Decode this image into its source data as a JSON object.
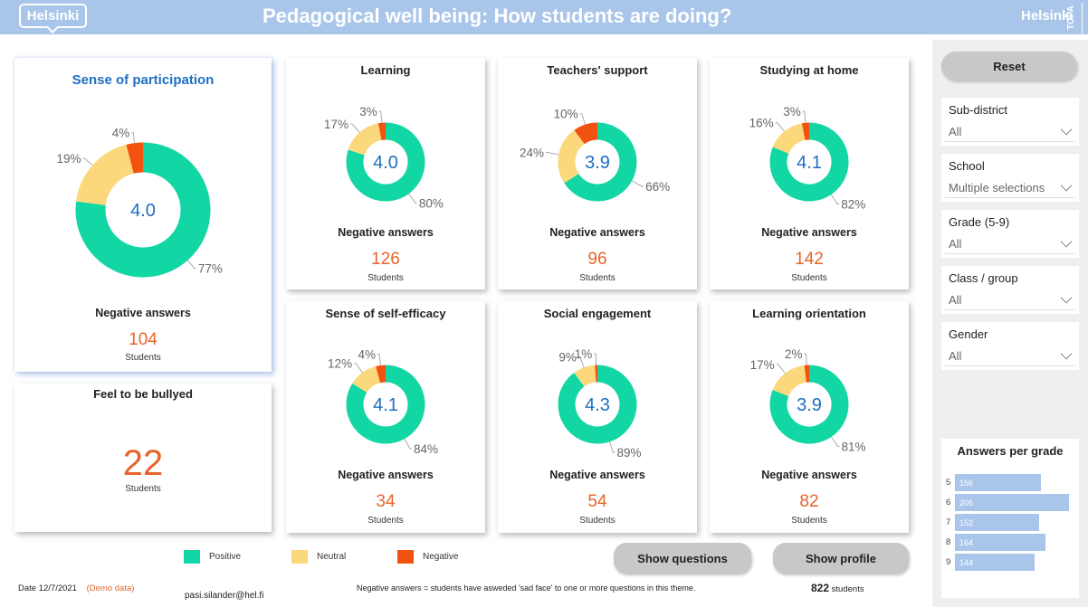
{
  "header": {
    "logo": "Helsinki",
    "title": "Pedagogical well being: How students are doing?",
    "brand": "Helsinki",
    "side_tag": "TOPA"
  },
  "colors": {
    "positive": "#13d6a5",
    "neutral": "#fcd87d",
    "negative": "#f2520f",
    "accent": "#1f6fc2",
    "count": "#e8632a"
  },
  "cards": {
    "participation": {
      "title": "Sense of participation",
      "score": "4.0",
      "pos": 77,
      "neu": 19,
      "neg": 4,
      "pos_label": "77%",
      "neu_label": "19%",
      "neg_label": "4%",
      "negative_label": "Negative answers",
      "count": "104",
      "unit": "Students"
    },
    "learning": {
      "title": "Learning",
      "score": "4.0",
      "pos": 80,
      "neu": 17,
      "neg": 3,
      "pos_label": "80%",
      "neu_label": "17%",
      "neg_label": "3%",
      "negative_label": "Negative answers",
      "count": "126",
      "unit": "Students"
    },
    "teachers": {
      "title": "Teachers' support",
      "score": "3.9",
      "pos": 66,
      "neu": 24,
      "neg": 10,
      "pos_label": "66%",
      "neu_label": "24%",
      "neg_label": "10%",
      "negative_label": "Negative answers",
      "count": "96",
      "unit": "Students"
    },
    "home": {
      "title": "Studying at home",
      "score": "4.1",
      "pos": 82,
      "neu": 16,
      "neg": 3,
      "pos_label": "82%",
      "neu_label": "16%",
      "neg_label": "3%",
      "negative_label": "Negative answers",
      "count": "142",
      "unit": "Students"
    },
    "efficacy": {
      "title": "Sense of self-efficacy",
      "score": "4.1",
      "pos": 84,
      "neu": 12,
      "neg": 4,
      "pos_label": "84%",
      "neu_label": "12%",
      "neg_label": "4%",
      "negative_label": "Negative answers",
      "count": "34",
      "unit": "Students"
    },
    "social": {
      "title": "Social engagement",
      "score": "4.3",
      "pos": 89,
      "neu": 9,
      "neg": 1,
      "pos_label": "89%",
      "neu_label": "9%",
      "neg_label": "1%",
      "negative_label": "Negative answers",
      "count": "54",
      "unit": "Students"
    },
    "orientation": {
      "title": "Learning orientation",
      "score": "3.9",
      "pos": 81,
      "neu": 17,
      "neg": 2,
      "pos_label": "81%",
      "neu_label": "17%",
      "neg_label": "2%",
      "negative_label": "Negative answers",
      "count": "82",
      "unit": "Students"
    }
  },
  "bullied": {
    "title": "Feel to be bullyed",
    "count": "22",
    "unit": "Students"
  },
  "legend": {
    "positive": "Positive",
    "neutral": "Neutral",
    "negative": "Negative"
  },
  "buttons": {
    "questions": "Show questions",
    "profile": "Show profile",
    "reset": "Reset"
  },
  "footer": {
    "date": "Date 12/7/2021",
    "demo": "(Demo data)",
    "email": "pasi.silander@hel.fi",
    "note": "Negative answers = students have asweded 'sad face' to one or more questions in this theme.",
    "total": "822",
    "total_unit": "students"
  },
  "filters": [
    {
      "label": "Sub-district",
      "value": "All"
    },
    {
      "label": "School",
      "value": "Multiple selections"
    },
    {
      "label": "Grade (5-9)",
      "value": "All"
    },
    {
      "label": "Class / group",
      "value": "All"
    },
    {
      "label": "Gender",
      "value": "All"
    }
  ],
  "grades": {
    "title": "Answers per grade",
    "rows": [
      {
        "grade": "5",
        "count": 156
      },
      {
        "grade": "6",
        "count": 206
      },
      {
        "grade": "7",
        "count": 152
      },
      {
        "grade": "8",
        "count": 164
      },
      {
        "grade": "9",
        "count": 144
      }
    ]
  }
}
